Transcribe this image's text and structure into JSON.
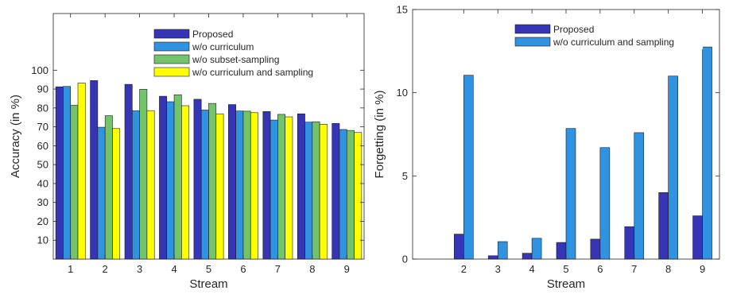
{
  "chart_data": [
    {
      "type": "bar",
      "xlabel": "Stream",
      "ylabel": "Accuracy (in %)",
      "categories": [
        "1",
        "2",
        "3",
        "4",
        "5",
        "6",
        "7",
        "8",
        "9"
      ],
      "ylim": [
        0,
        130
      ],
      "yticks": [
        "10",
        "20",
        "30",
        "40",
        "50",
        "60",
        "70",
        "80",
        "90",
        "100"
      ],
      "legend_position": "top-right",
      "series": [
        {
          "name": "Proposed",
          "color": "#3535b5",
          "values": [
            91.2,
            94.5,
            92.5,
            86.2,
            84.6,
            81.8,
            78.1,
            76.9,
            71.8
          ]
        },
        {
          "name": "w/o curriculum",
          "color": "#2f93e2",
          "values": [
            91.4,
            69.8,
            78.5,
            83.3,
            78.9,
            78.4,
            73.6,
            72.5,
            68.6
          ]
        },
        {
          "name": "w/o subset-sampling",
          "color": "#73c36b",
          "values": [
            81.4,
            75.9,
            89.9,
            87.0,
            82.4,
            78.3,
            76.6,
            72.7,
            68.1
          ]
        },
        {
          "name": "w/o curriculum and sampling",
          "color": "#ffff00",
          "values": [
            93.2,
            69.1,
            78.6,
            81.2,
            76.9,
            77.5,
            75.3,
            71.4,
            67.0
          ]
        }
      ]
    },
    {
      "type": "bar",
      "xlabel": "Stream",
      "ylabel": "Forgetting (in %)",
      "categories": [
        "",
        "2",
        "3",
        "4",
        "5",
        "6",
        "7",
        "8",
        "9"
      ],
      "ylim": [
        0,
        15
      ],
      "yticks": [
        "0",
        "5",
        "10",
        "15"
      ],
      "legend_position": "top-right",
      "series": [
        {
          "name": "Proposed",
          "color": "#3535b5",
          "values": [
            null,
            1.5,
            0.2,
            0.35,
            1.0,
            1.2,
            1.95,
            4.0,
            2.6
          ]
        },
        {
          "name": "w/o curriculum and sampling",
          "color": "#2f93e2",
          "values": [
            null,
            11.05,
            1.05,
            1.25,
            7.85,
            6.7,
            7.6,
            11.0,
            12.75
          ]
        }
      ]
    }
  ]
}
